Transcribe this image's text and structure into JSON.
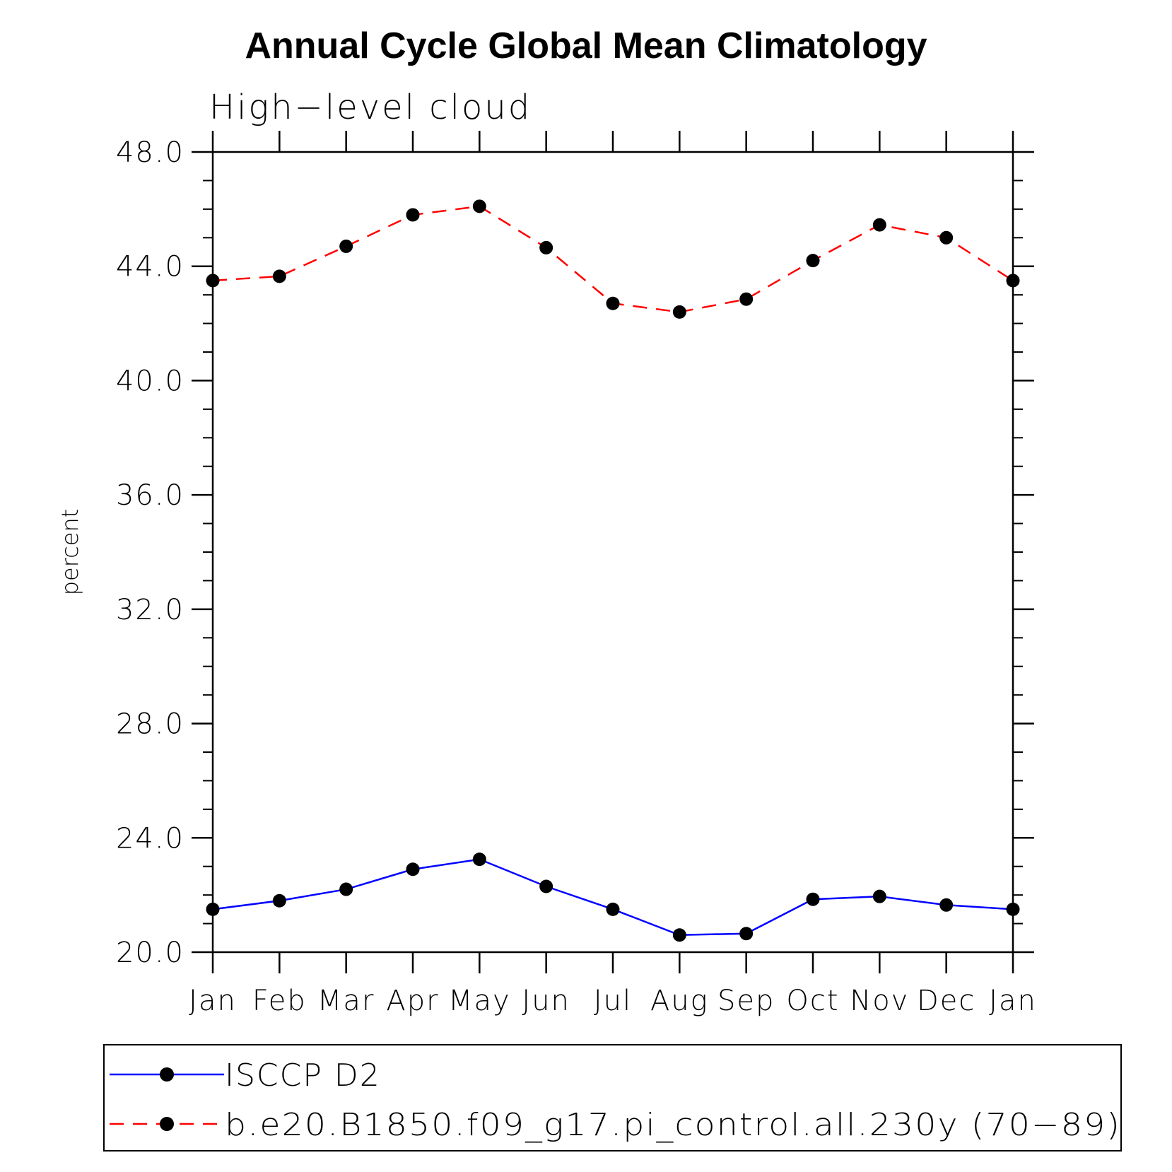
{
  "chart_data": {
    "type": "line",
    "title": "Annual Cycle Global Mean Climatology",
    "subtitle": "High−level cloud",
    "ylabel": "percent",
    "xlabel": "",
    "categories": [
      "Jan",
      "Feb",
      "Mar",
      "Apr",
      "May",
      "Jun",
      "Jul",
      "Aug",
      "Sep",
      "Oct",
      "Nov",
      "Dec",
      "Jan"
    ],
    "ylim": [
      20.0,
      48.0
    ],
    "yticks": [
      "20.0",
      "24.0",
      "28.0",
      "32.0",
      "36.0",
      "40.0",
      "44.0",
      "48.0"
    ],
    "grid": false,
    "legend_position": "bottom",
    "series": [
      {
        "name": "ISCCP D2",
        "color": "#0000ff",
        "dash": "solid",
        "marker": "filled-circle",
        "values": [
          21.5,
          21.8,
          22.2,
          22.9,
          23.25,
          22.3,
          21.5,
          20.6,
          20.65,
          21.85,
          21.95,
          21.65,
          21.5
        ]
      },
      {
        "name": "b.e20.B1850.f09_g17.pi_control.all.230y (70−89)",
        "color": "#ff0000",
        "dash": "dashed",
        "marker": "filled-circle",
        "values": [
          43.5,
          43.65,
          44.7,
          45.8,
          46.1,
          44.65,
          42.7,
          42.4,
          42.85,
          44.2,
          45.45,
          45.0,
          43.5
        ]
      }
    ]
  }
}
